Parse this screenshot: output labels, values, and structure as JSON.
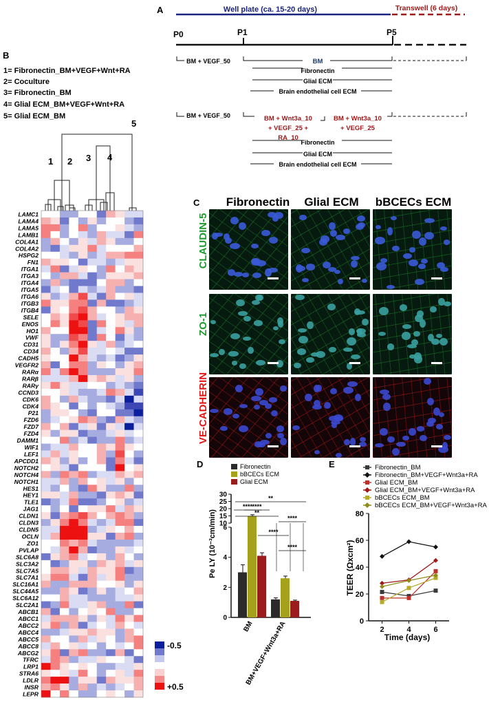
{
  "panelA": {
    "label": "A",
    "wellplate": "Well plate (ca. 15-20  days)",
    "transwell": "Transwell (6 days)",
    "p0": "P0",
    "p1": "P1",
    "p5": "P5",
    "row1_media": "BM + VEGF_50",
    "row1_bm": "BM",
    "row2_media": "BM + VEGF_50",
    "row2_block1": [
      "BM + Wnt3a_10",
      "+ VEGF_25 +",
      "RA_10"
    ],
    "row2_block2": [
      "BM + Wnt3a_10",
      "+ VEGF_25"
    ],
    "coatings": [
      "Fibronectin",
      "Glial ECM",
      "Brain endothelial cell ECM"
    ]
  },
  "panelB": {
    "label": "B",
    "legend": [
      "1= Fibronectin_BM+VEGF+Wnt+RA",
      "2= Coculture",
      "3= Fibronectin_BM",
      "4= Glial ECM_BM+VEGF+Wnt+RA",
      "5= Glial ECM_BM"
    ],
    "cluster_labels": [
      "1",
      "2",
      "3",
      "4",
      "5"
    ],
    "genes": [
      "LAMC1",
      "LAMA4",
      "LAMA5",
      "LAMB1",
      "COL4A1",
      "COL4A2",
      "HSPG2",
      "FN1",
      "ITGA1",
      "ITGA3",
      "ITGA4",
      "ITGA5",
      "ITGA6",
      "ITGB3",
      "ITGB4",
      "SELE",
      "ENOS",
      "HO1",
      "VWF",
      "CD31",
      "CD34",
      "CADH5",
      "VEGFR2",
      "RARα",
      "RARβ",
      "RARγ",
      "CCND3",
      "CDK6",
      "CDK4",
      "P21",
      "FZD6",
      "FZD7",
      "FZD4",
      "DAMM1",
      "WIF1",
      "LEF1",
      "APCDD1",
      "NOTCH2",
      "NOTCH4",
      "NOTCH1",
      "HES1",
      "HEY1",
      "TLE1",
      "JAG1",
      "CLDN1",
      "CLDN3",
      "CLDN5",
      "OCLN",
      "ZO1",
      "PVLAP",
      "SLC6A8",
      "SLC3A2",
      "SLC7A5",
      "SLC7A1",
      "SLC16A1",
      "SLC44A5",
      "SLC6A12",
      "SLC2A1",
      "ABCB1",
      "ABCC1",
      "ABCC2",
      "ABCC4",
      "ABCC5",
      "ABCC8",
      "ABCG2",
      "TFRC",
      "LRP1",
      "STRA6",
      "LDLR",
      "INSR",
      "LEPR"
    ],
    "scale_low": "-0.5",
    "scale_high": "+0.5",
    "colors": {
      "low": "#0a1e9e",
      "mid": "#ffffff",
      "high": "#ee1111"
    }
  },
  "panelC": {
    "label": "C",
    "columns": [
      "Fibronectin",
      "Glial ECM",
      "bBCECs ECM"
    ],
    "rows": [
      "CLAUDIN-5",
      "ZO-1",
      "VE-CADHERIN"
    ],
    "colors": {
      "claudin": "#1e9a2e",
      "zo": "#1e9a2e",
      "vecad": "#e01818"
    }
  },
  "panelD": {
    "label": "D",
    "chart_data": {
      "type": "bar",
      "ylabel": "Pe LY (10⁻³cm/min)",
      "categories": [
        "BM",
        "BM+VEGF+Wnt3a+RA"
      ],
      "series": [
        {
          "name": "Fibronectin",
          "values": [
            3.0,
            1.2
          ],
          "errors": [
            0.5,
            0.1
          ],
          "color": "#2b2b2b"
        },
        {
          "name": "bBCECs ECM",
          "values": [
            14.8,
            2.6
          ],
          "errors": [
            1.0,
            0.15
          ],
          "color": "#a6a11a"
        },
        {
          "name": "Glial ECM",
          "values": [
            4.1,
            1.1
          ],
          "errors": [
            0.2,
            0.05
          ],
          "color": "#9b1c1c"
        }
      ],
      "y_lower_ticks": [
        "0",
        "2",
        "4",
        "6"
      ],
      "y_upper_ticks": [
        "10",
        "15",
        "20",
        "25",
        "30"
      ],
      "ylim": [
        0,
        30
      ],
      "axis_break": [
        6,
        10
      ],
      "significance": [
        "****",
        "****",
        "**",
        "**",
        "****",
        "****",
        "****"
      ]
    }
  },
  "panelE": {
    "label": "E",
    "chart_data": {
      "type": "line",
      "xlabel": "Time (days)",
      "ylabel": "TEER (Ωxcm²)",
      "x": [
        2,
        4,
        6
      ],
      "xticks": [
        "2",
        "4",
        "6"
      ],
      "yticks": [
        "0",
        "20",
        "40",
        "60",
        "80"
      ],
      "xlim": [
        1,
        7
      ],
      "ylim": [
        0,
        80
      ],
      "series": [
        {
          "name": "Fibronectin_BM",
          "values": [
            21.5,
            18.5,
            22.5
          ],
          "color": "#3a3a3a",
          "marker": "square"
        },
        {
          "name": "Fibronectin_BM+VEGF+Wnt3a+RA",
          "values": [
            48,
            59,
            55
          ],
          "color": "#111111",
          "marker": "diamond"
        },
        {
          "name": "Glial ECM_BM",
          "values": [
            17,
            17,
            37
          ],
          "color": "#c0302a",
          "marker": "square"
        },
        {
          "name": "Glial ECM_BM+VEGF+Wnt3a+RA",
          "values": [
            28,
            30.5,
            45
          ],
          "color": "#a01818",
          "marker": "diamond"
        },
        {
          "name": "bBCECs ECM_BM",
          "values": [
            14,
            24.5,
            32
          ],
          "color": "#b8aa2a",
          "marker": "square"
        },
        {
          "name": "bBCECs ECM_BM+VEGF+Wnt3a+RA",
          "values": [
            25.5,
            30,
            34
          ],
          "color": "#8f8b1a",
          "marker": "diamond"
        }
      ]
    }
  }
}
